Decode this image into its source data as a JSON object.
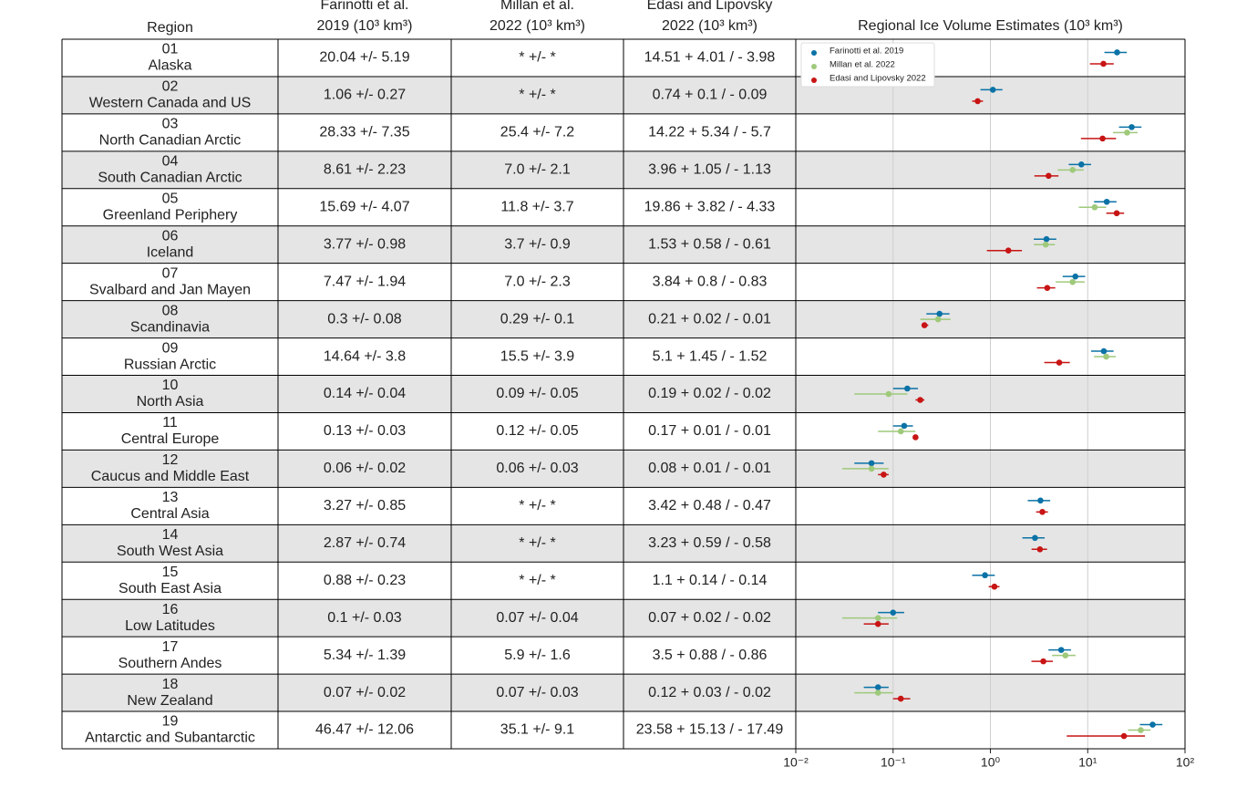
{
  "table": {
    "headers": [
      [
        "Region"
      ],
      [
        "Farinotti et al.",
        "2019 (10³ km³)"
      ],
      [
        "Millan et al.",
        "2022 (10³ km³)"
      ],
      [
        "Edasi and Lipovsky",
        "2022 (10³ km³)"
      ]
    ],
    "rows": [
      [
        "01",
        "Alaska",
        "20.04 +/- 5.19",
        "* +/- *",
        "14.51 + 4.01 / - 3.98"
      ],
      [
        "02",
        "Western Canada and US",
        "1.06 +/- 0.27",
        "* +/- *",
        "0.74 + 0.1 / - 0.09"
      ],
      [
        "03",
        "North Canadian Arctic",
        "28.33 +/- 7.35",
        "25.4 +/- 7.2",
        "14.22 + 5.34 / - 5.7"
      ],
      [
        "04",
        "South Canadian Arctic",
        "8.61 +/- 2.23",
        "7.0 +/- 2.1",
        "3.96 + 1.05 / - 1.13"
      ],
      [
        "05",
        "Greenland Periphery",
        "15.69 +/- 4.07",
        "11.8 +/- 3.7",
        "19.86 + 3.82 / - 4.33"
      ],
      [
        "06",
        "Iceland",
        "3.77 +/- 0.98",
        "3.7 +/- 0.9",
        "1.53 + 0.58 / - 0.61"
      ],
      [
        "07",
        "Svalbard and Jan Mayen",
        "7.47 +/- 1.94",
        "7.0 +/- 2.3",
        "3.84 + 0.8 / - 0.83"
      ],
      [
        "08",
        "Scandinavia",
        "0.3 +/- 0.08",
        "0.29 +/- 0.1",
        "0.21 + 0.02 / - 0.01"
      ],
      [
        "09",
        "Russian Arctic",
        "14.64 +/- 3.8",
        "15.5 +/- 3.9",
        "5.1 + 1.45 / - 1.52"
      ],
      [
        "10",
        "North Asia",
        "0.14 +/- 0.04",
        "0.09 +/- 0.05",
        "0.19 + 0.02 / - 0.02"
      ],
      [
        "11",
        "Central Europe",
        "0.13 +/- 0.03",
        "0.12 +/- 0.05",
        "0.17 + 0.01 / - 0.01"
      ],
      [
        "12",
        "Caucus and Middle East",
        "0.06 +/- 0.02",
        "0.06 +/- 0.03",
        "0.08 + 0.01 / - 0.01"
      ],
      [
        "13",
        "Central Asia",
        "3.27 +/- 0.85",
        "* +/- *",
        "3.42 + 0.48 / - 0.47"
      ],
      [
        "14",
        "South West Asia",
        "2.87 +/- 0.74",
        "* +/- *",
        "3.23 + 0.59 / - 0.58"
      ],
      [
        "15",
        "South East Asia",
        "0.88 +/- 0.23",
        "* +/- *",
        "1.1 + 0.14 / - 0.14"
      ],
      [
        "16",
        "Low Latitudes",
        "0.1 +/- 0.03",
        "0.07 +/- 0.04",
        "0.07 + 0.02 / - 0.02"
      ],
      [
        "17",
        "Southern Andes",
        "5.34 +/- 1.39",
        "5.9 +/- 1.6",
        "3.5 + 0.88 / - 0.86"
      ],
      [
        "18",
        "New Zealand",
        "0.07 +/- 0.02",
        "0.07 +/- 0.03",
        "0.12 + 0.03 / - 0.02"
      ],
      [
        "19",
        "Antarctic and Subantarctic",
        "46.47 +/- 12.06",
        "35.1 +/- 9.1",
        "23.58 + 15.13 / - 17.49"
      ]
    ]
  },
  "chart_data": {
    "type": "errorbar",
    "title": "Regional Ice Volume Estimates (10³ km³)",
    "xscale": "log",
    "xlim": [
      0.01,
      100
    ],
    "xticks": [
      {
        "value": 0.01,
        "label": "10⁻²"
      },
      {
        "value": 0.1,
        "label": "10⁻¹"
      },
      {
        "value": 1,
        "label": "10⁰"
      },
      {
        "value": 10,
        "label": "10¹"
      },
      {
        "value": 100,
        "label": "10²"
      }
    ],
    "grid": true,
    "legend": "upper left",
    "series": [
      {
        "name": "Farinotti et al. 2019",
        "color": "#0a72a6",
        "values": [
          20.04,
          1.06,
          28.33,
          8.61,
          15.69,
          3.77,
          7.47,
          0.3,
          14.64,
          0.14,
          0.13,
          0.06,
          3.27,
          2.87,
          0.88,
          0.1,
          5.34,
          0.07,
          46.47
        ],
        "errors": [
          5.19,
          0.27,
          7.35,
          2.23,
          4.07,
          0.98,
          1.94,
          0.08,
          3.8,
          0.04,
          0.03,
          0.02,
          0.85,
          0.74,
          0.23,
          0.03,
          1.39,
          0.02,
          12.06
        ]
      },
      {
        "name": "Millan et al. 2022",
        "color": "#9fc97b",
        "values": [
          null,
          null,
          25.4,
          7.0,
          11.8,
          3.7,
          7.0,
          0.29,
          15.5,
          0.09,
          0.12,
          0.06,
          null,
          null,
          null,
          0.07,
          5.9,
          0.07,
          35.1
        ],
        "errors": [
          null,
          null,
          7.2,
          2.1,
          3.7,
          0.9,
          2.3,
          0.1,
          3.9,
          0.05,
          0.05,
          0.03,
          null,
          null,
          null,
          0.04,
          1.6,
          0.03,
          9.1
        ]
      },
      {
        "name": "Edasi and Lipovsky 2022",
        "color": "#c81414",
        "values": [
          14.51,
          0.74,
          14.22,
          3.96,
          19.86,
          1.53,
          3.84,
          0.21,
          5.1,
          0.19,
          0.17,
          0.08,
          3.42,
          3.23,
          1.1,
          0.07,
          3.5,
          0.12,
          23.58
        ],
        "errors_plus": [
          4.01,
          0.1,
          5.34,
          1.05,
          3.82,
          0.58,
          0.8,
          0.02,
          1.45,
          0.02,
          0.01,
          0.01,
          0.48,
          0.59,
          0.14,
          0.02,
          0.88,
          0.03,
          15.13
        ],
        "errors_minus": [
          3.98,
          0.09,
          5.7,
          1.13,
          4.33,
          0.61,
          0.83,
          0.01,
          1.52,
          0.02,
          0.01,
          0.01,
          0.47,
          0.58,
          0.14,
          0.02,
          0.86,
          0.02,
          17.49
        ]
      }
    ]
  }
}
